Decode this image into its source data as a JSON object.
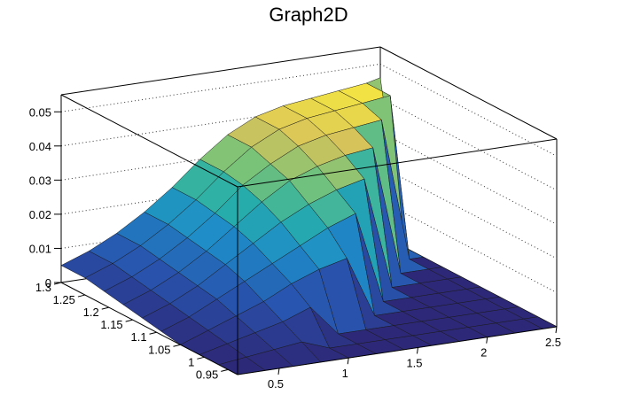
{
  "chart_data": {
    "type": "surface",
    "title": "Graph2D",
    "xlabel": "",
    "ylabel": "",
    "zlabel": "",
    "xlim": [
      0.2,
      2.5
    ],
    "ylim": [
      0.93,
      1.3
    ],
    "zlim": [
      0,
      0.055
    ],
    "x_ticks": [
      "0.5",
      "1",
      "1.5",
      "2",
      "2.5"
    ],
    "y_ticks": [
      "0.95",
      "1",
      "1.05",
      "1.1",
      "1.15",
      "1.2",
      "1.25",
      "1.3"
    ],
    "z_ticks": [
      "0",
      "0.01",
      "0.02",
      "0.03",
      "0.04",
      "0.05"
    ],
    "grid": true,
    "colormap": "viridis-like (blue-green-yellow)",
    "surface_x": [
      0.2,
      0.4,
      0.6,
      0.8,
      1.0,
      1.2,
      1.4,
      1.6,
      1.8,
      2.0,
      2.2,
      2.4,
      2.5
    ],
    "surface_y": [
      0.93,
      0.97,
      1.01,
      1.05,
      1.09,
      1.13,
      1.17,
      1.21,
      1.25,
      1.3
    ],
    "surface_z": [
      [
        0.0,
        0.0,
        0.0,
        0.0,
        0.0,
        0.0,
        0.0,
        0.0,
        0.0,
        0.0,
        0.0,
        0.0,
        0.0
      ],
      [
        0.0,
        0.001,
        0.002,
        0.003,
        0.0,
        0.0,
        0.0,
        0.0,
        0.0,
        0.0,
        0.0,
        0.0,
        0.0
      ],
      [
        0.0,
        0.002,
        0.004,
        0.006,
        0.009,
        0.0,
        0.0,
        0.0,
        0.0,
        0.0,
        0.0,
        0.0,
        0.0
      ],
      [
        0.0,
        0.003,
        0.006,
        0.009,
        0.013,
        0.016,
        0.018,
        0.0,
        0.0,
        0.0,
        0.0,
        0.0,
        0.0
      ],
      [
        0.001,
        0.004,
        0.008,
        0.012,
        0.016,
        0.02,
        0.024,
        0.027,
        0.0,
        0.0,
        0.0,
        0.0,
        0.0
      ],
      [
        0.002,
        0.005,
        0.009,
        0.014,
        0.019,
        0.024,
        0.028,
        0.031,
        0.033,
        0.0,
        0.0,
        0.0,
        0.0
      ],
      [
        0.003,
        0.006,
        0.01,
        0.015,
        0.021,
        0.027,
        0.032,
        0.035,
        0.037,
        0.038,
        0.0,
        0.0,
        0.0
      ],
      [
        0.004,
        0.007,
        0.011,
        0.016,
        0.022,
        0.029,
        0.034,
        0.038,
        0.04,
        0.041,
        0.042,
        0.0,
        0.0
      ],
      [
        0.005,
        0.008,
        0.012,
        0.017,
        0.023,
        0.03,
        0.036,
        0.04,
        0.042,
        0.043,
        0.044,
        0.045,
        0.0
      ],
      [
        0.005,
        0.008,
        0.012,
        0.017,
        0.023,
        0.03,
        0.036,
        0.04,
        0.042,
        0.043,
        0.044,
        0.045,
        0.046
      ]
    ]
  }
}
